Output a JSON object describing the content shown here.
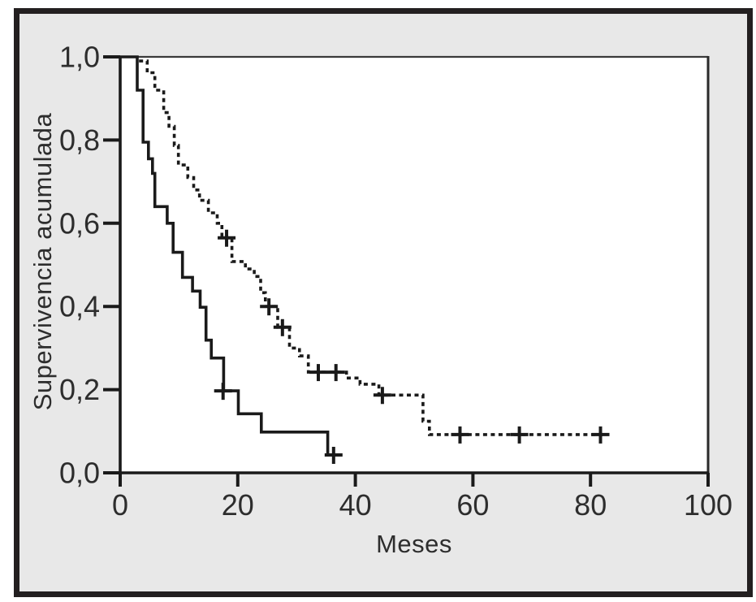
{
  "chart_data": {
    "type": "line",
    "subtype": "kaplan-meier-step",
    "title": "",
    "xlabel": "Meses",
    "ylabel": "Supervivencia acumulada",
    "xlim": [
      0,
      100
    ],
    "ylim": [
      0.0,
      1.0
    ],
    "grid": false,
    "legend": "none",
    "x_ticks": [
      {
        "v": 0,
        "label": "0"
      },
      {
        "v": 20,
        "label": "20"
      },
      {
        "v": 40,
        "label": "40"
      },
      {
        "v": 60,
        "label": "60"
      },
      {
        "v": 80,
        "label": "80"
      },
      {
        "v": 100,
        "label": "100"
      }
    ],
    "y_ticks": [
      {
        "v": 0.0,
        "label": "0,0"
      },
      {
        "v": 0.2,
        "label": "0,2"
      },
      {
        "v": 0.4,
        "label": "0,4"
      },
      {
        "v": 0.6,
        "label": "0,6"
      },
      {
        "v": 0.8,
        "label": "0,8"
      },
      {
        "v": 1.0,
        "label": "1,0"
      }
    ],
    "series": [
      {
        "style": "solid",
        "points": [
          [
            0,
            1.0
          ],
          [
            2.9,
            1.0
          ],
          [
            2.9,
            0.92
          ],
          [
            3.9,
            0.92
          ],
          [
            3.9,
            0.795
          ],
          [
            4.8,
            0.795
          ],
          [
            4.8,
            0.755
          ],
          [
            5.5,
            0.755
          ],
          [
            5.5,
            0.72
          ],
          [
            5.9,
            0.72
          ],
          [
            5.9,
            0.64
          ],
          [
            8.0,
            0.64
          ],
          [
            8.0,
            0.6
          ],
          [
            9.0,
            0.6
          ],
          [
            9.0,
            0.53
          ],
          [
            10.6,
            0.53
          ],
          [
            10.6,
            0.47
          ],
          [
            12.3,
            0.47
          ],
          [
            12.3,
            0.437
          ],
          [
            13.6,
            0.437
          ],
          [
            13.6,
            0.398
          ],
          [
            14.6,
            0.398
          ],
          [
            14.6,
            0.319
          ],
          [
            15.5,
            0.319
          ],
          [
            15.5,
            0.276
          ],
          [
            17.6,
            0.276
          ],
          [
            17.6,
            0.197
          ],
          [
            20.1,
            0.197
          ],
          [
            20.1,
            0.142
          ],
          [
            24.0,
            0.142
          ],
          [
            24.0,
            0.098
          ],
          [
            35.3,
            0.098
          ],
          [
            35.3,
            0.043
          ],
          [
            36.8,
            0.043
          ]
        ],
        "censors": [
          [
            17.5,
            0.197
          ],
          [
            36.3,
            0.043
          ]
        ]
      },
      {
        "style": "dotted",
        "points": [
          [
            3.2,
            0.99
          ],
          [
            4.6,
            0.99
          ],
          [
            4.6,
            0.962
          ],
          [
            5.9,
            0.962
          ],
          [
            5.9,
            0.92
          ],
          [
            7.4,
            0.92
          ],
          [
            7.4,
            0.866
          ],
          [
            8.3,
            0.866
          ],
          [
            8.3,
            0.833
          ],
          [
            9.2,
            0.833
          ],
          [
            9.2,
            0.787
          ],
          [
            9.9,
            0.787
          ],
          [
            9.9,
            0.74
          ],
          [
            11.5,
            0.74
          ],
          [
            11.5,
            0.71
          ],
          [
            12.5,
            0.71
          ],
          [
            12.5,
            0.68
          ],
          [
            13.5,
            0.68
          ],
          [
            13.5,
            0.655
          ],
          [
            15.0,
            0.655
          ],
          [
            15.0,
            0.625
          ],
          [
            16.5,
            0.625
          ],
          [
            16.5,
            0.6
          ],
          [
            17.3,
            0.6
          ],
          [
            17.3,
            0.565
          ],
          [
            19.0,
            0.565
          ],
          [
            19.0,
            0.508
          ],
          [
            21.3,
            0.508
          ],
          [
            21.3,
            0.49
          ],
          [
            22.8,
            0.49
          ],
          [
            22.8,
            0.472
          ],
          [
            23.9,
            0.472
          ],
          [
            23.9,
            0.433
          ],
          [
            24.7,
            0.433
          ],
          [
            24.7,
            0.4
          ],
          [
            26.8,
            0.4
          ],
          [
            26.8,
            0.35
          ],
          [
            28.8,
            0.35
          ],
          [
            28.8,
            0.3
          ],
          [
            30.5,
            0.3
          ],
          [
            30.5,
            0.281
          ],
          [
            32.0,
            0.281
          ],
          [
            32.0,
            0.242
          ],
          [
            38.5,
            0.242
          ],
          [
            38.5,
            0.228
          ],
          [
            40.8,
            0.228
          ],
          [
            40.8,
            0.213
          ],
          [
            44.0,
            0.213
          ],
          [
            44.0,
            0.187
          ],
          [
            51.5,
            0.187
          ],
          [
            51.5,
            0.124
          ],
          [
            52.6,
            0.124
          ],
          [
            52.6,
            0.092
          ],
          [
            82.5,
            0.092
          ]
        ],
        "censors": [
          [
            18.1,
            0.565
          ],
          [
            25.3,
            0.4
          ],
          [
            27.6,
            0.35
          ],
          [
            33.7,
            0.242
          ],
          [
            36.7,
            0.242
          ],
          [
            44.6,
            0.187
          ],
          [
            57.8,
            0.092
          ],
          [
            67.9,
            0.092
          ],
          [
            81.7,
            0.092
          ]
        ]
      }
    ],
    "colors": {
      "line": "#1a1a1a",
      "background": "#e8e8e8",
      "plot_background": "#ffffff",
      "border": "#231f20",
      "text": "#2d2d2d"
    }
  }
}
